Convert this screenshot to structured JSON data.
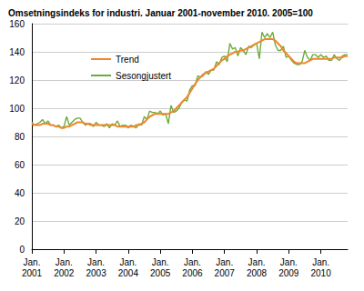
{
  "chart_data": {
    "type": "line",
    "title": "Omsetningsindeks for industri. Januar 2001-november 2010. 2005=100",
    "categories": [
      "Jan.\n2001",
      null,
      null,
      null,
      null,
      null,
      null,
      null,
      null,
      null,
      null,
      null,
      "Jan.\n2002",
      null,
      null,
      null,
      null,
      null,
      null,
      null,
      null,
      null,
      null,
      null,
      "Jan.\n2003",
      null,
      null,
      null,
      null,
      null,
      null,
      null,
      null,
      null,
      null,
      null,
      "Jan.\n2004",
      null,
      null,
      null,
      null,
      null,
      null,
      null,
      null,
      null,
      null,
      null,
      "Jan.\n2005",
      null,
      null,
      null,
      null,
      null,
      null,
      null,
      null,
      null,
      null,
      null,
      "Jan.\n2006",
      null,
      null,
      null,
      null,
      null,
      null,
      null,
      null,
      null,
      null,
      null,
      "Jan.\n2007",
      null,
      null,
      null,
      null,
      null,
      null,
      null,
      null,
      null,
      null,
      null,
      "Jan.\n2008",
      null,
      null,
      null,
      null,
      null,
      null,
      null,
      null,
      null,
      null,
      null,
      "Jan.\n2009",
      null,
      null,
      null,
      null,
      null,
      null,
      null,
      null,
      null,
      null,
      null,
      "Jan.\n2010",
      null,
      null,
      null,
      null,
      null,
      null,
      null,
      null,
      null,
      null
    ],
    "series": [
      {
        "name": "Trend",
        "color": "#f0862a",
        "values": [
          89,
          88,
          88,
          88,
          89,
          89,
          89,
          88,
          88,
          87,
          87,
          86,
          86,
          87,
          87,
          88,
          89,
          90,
          90,
          90,
          89,
          89,
          88,
          88,
          88,
          88,
          88,
          88,
          88,
          88,
          88,
          88,
          87,
          87,
          87,
          87,
          87,
          87,
          87,
          88,
          88,
          89,
          90,
          92,
          94,
          95,
          96,
          96,
          96,
          96,
          96,
          96,
          97,
          98,
          100,
          102,
          104,
          106,
          108,
          111,
          114,
          117,
          120,
          122,
          124,
          125,
          126,
          127,
          128,
          130,
          132,
          134,
          135,
          137,
          138,
          139,
          140,
          140,
          141,
          141,
          142,
          143,
          144,
          145,
          146,
          147,
          148,
          149,
          149,
          149,
          149,
          148,
          146,
          144,
          141,
          139,
          137,
          135,
          133,
          132,
          132,
          132,
          132,
          133,
          134,
          135,
          135,
          135,
          135,
          135,
          135,
          135,
          135,
          136,
          136,
          136,
          136,
          137,
          137
        ]
      },
      {
        "name": "Sesongjustert",
        "color": "#6aac3c",
        "values": [
          90,
          88,
          89,
          90,
          92,
          89,
          91,
          88,
          88,
          87,
          88,
          86,
          87,
          94,
          88,
          90,
          92,
          93,
          93,
          90,
          88,
          89,
          89,
          87,
          90,
          88,
          88,
          87,
          89,
          86,
          89,
          88,
          91,
          87,
          88,
          88,
          86,
          88,
          87,
          86,
          89,
          88,
          94,
          92,
          98,
          97,
          97,
          96,
          98,
          95,
          96,
          89,
          102,
          97,
          98,
          100,
          104,
          106,
          105,
          113,
          116,
          116,
          123,
          122,
          123,
          126,
          124,
          127,
          127,
          133,
          131,
          136,
          137,
          133,
          146,
          142,
          143,
          137,
          143,
          141,
          138,
          144,
          143,
          145,
          146,
          135,
          154,
          150,
          153,
          150,
          154,
          145,
          141,
          141,
          144,
          136,
          137,
          134,
          132,
          131,
          131,
          133,
          141,
          136,
          134,
          138,
          138,
          136,
          138,
          136,
          137,
          134,
          134,
          138,
          135,
          134,
          137,
          138,
          138
        ]
      }
    ],
    "ylim": [
      0,
      160
    ],
    "yticks": [
      0,
      20,
      40,
      60,
      80,
      100,
      120,
      140,
      160
    ],
    "grid": true,
    "legend": "upper left"
  }
}
